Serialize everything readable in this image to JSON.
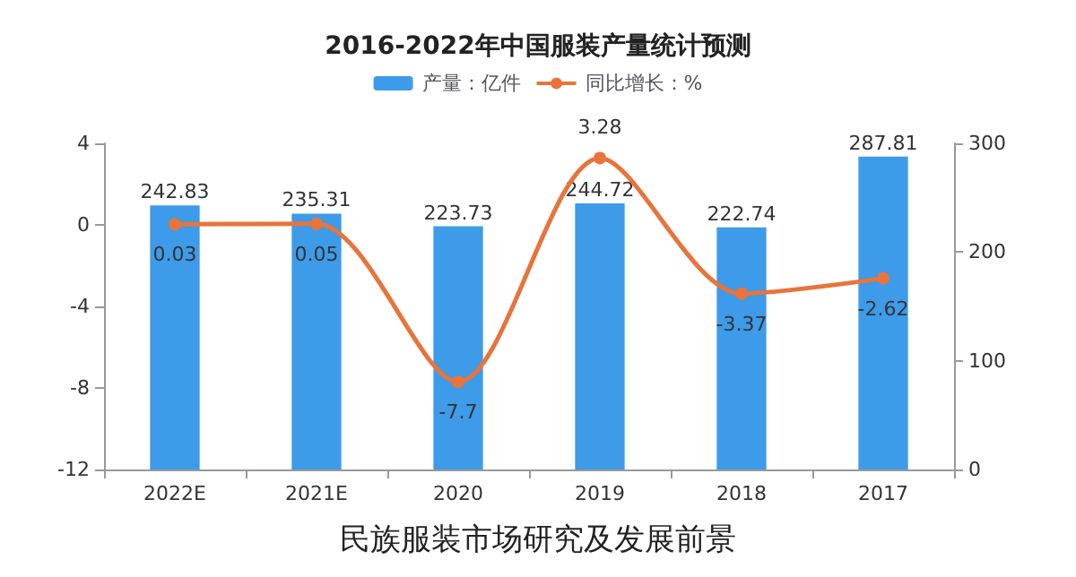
{
  "chart_data": {
    "type": "bar",
    "title": "2016-2022年中国服装产量统计预测",
    "categories": [
      "2022E",
      "2021E",
      "2020",
      "2019",
      "2018",
      "2017"
    ],
    "series": [
      {
        "name": "产量：亿件",
        "axis": "y2",
        "color": "#3d9be9",
        "values": [
          242.83,
          235.31,
          223.73,
          244.72,
          222.74,
          287.81
        ]
      },
      {
        "name": "同比增长：%",
        "type": "line",
        "axis": "y",
        "color": "#e8743b",
        "values": [
          0.03,
          0.05,
          -7.7,
          3.28,
          -3.37,
          -2.62
        ]
      }
    ],
    "ylim": [
      -12,
      4
    ],
    "yticks": [
      -12,
      -8,
      -4,
      0,
      4
    ],
    "y2lim": [
      0,
      300
    ],
    "y2ticks": [
      0,
      100,
      200,
      300
    ],
    "data_labels": true,
    "grid": false,
    "legend": "top",
    "marker": "circle",
    "annotations": [
      "民族服装市场研究及发展前景"
    ]
  }
}
